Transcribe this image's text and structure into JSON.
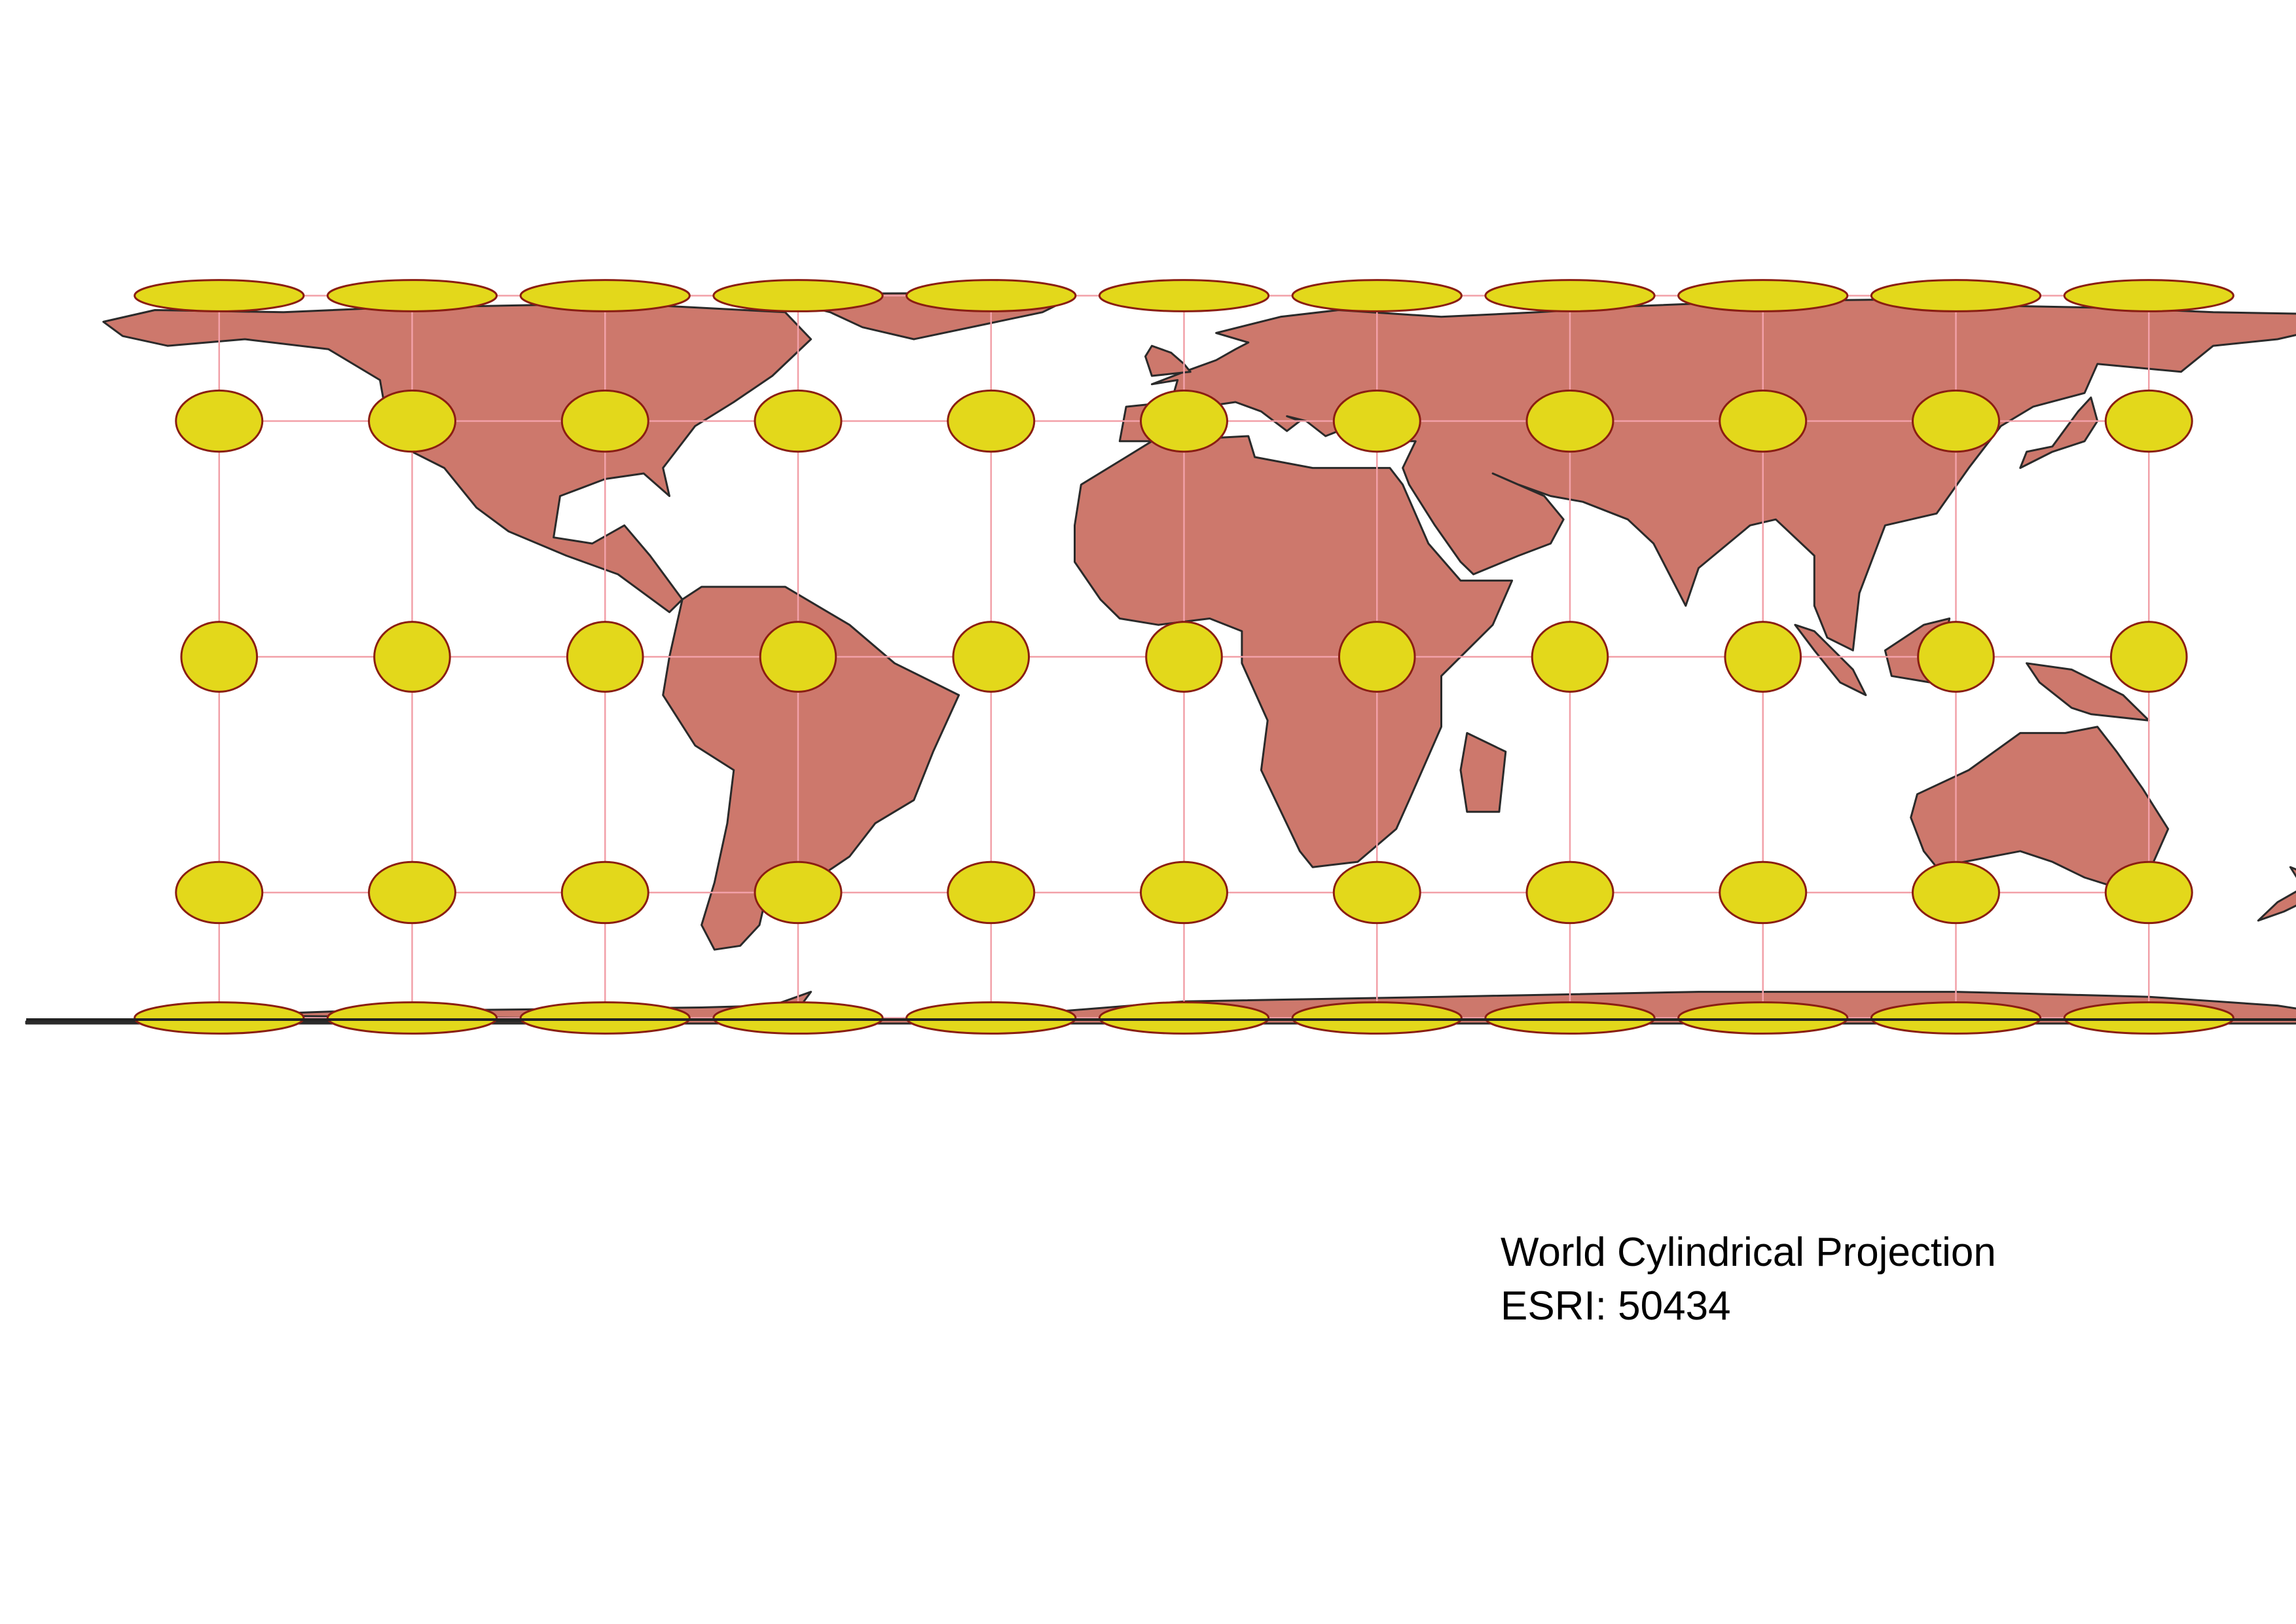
{
  "caption": {
    "title": "World Cylindrical Projection",
    "code": "ESRI: 50434"
  },
  "map": {
    "projection": "world cylindrical (equal-area)",
    "land_color": "#cd786c",
    "land_outline_color": "#2a2a2a",
    "graticule_color": "#f2a0a8",
    "indicatrix_fill": "#e3d81b",
    "indicatrix_stroke": "#8a1e12",
    "indicatrix_longitudes": [
      -150,
      -120,
      -90,
      -60,
      -30,
      0,
      30,
      60,
      90,
      120,
      150
    ],
    "indicatrix_latitudes": [
      80,
      40,
      0,
      -40,
      -80
    ]
  }
}
